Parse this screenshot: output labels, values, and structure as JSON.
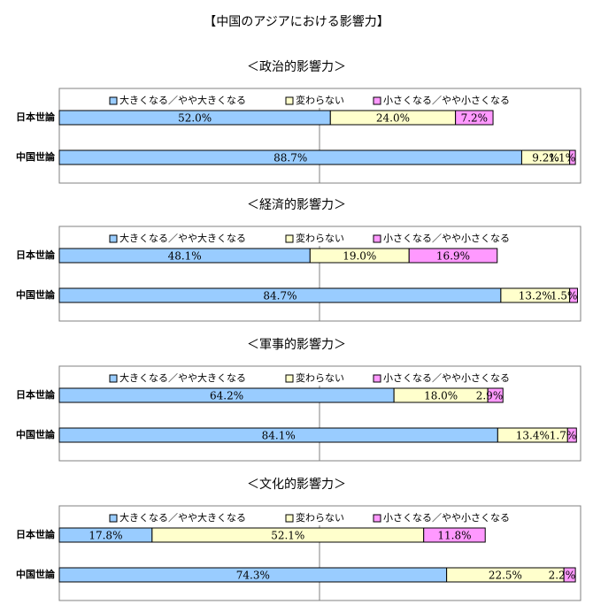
{
  "title": "【中国のアジアにおける影響力】",
  "legend": [
    "大きくなる／やや大きくなる",
    "変わらない",
    "小さくなる／やや小さくなる"
  ],
  "colors": {
    "increase": "#99ccff",
    "unchanged": "#ffffcc",
    "decrease": "#ff99ff",
    "border": "#000000",
    "frame": "#808080"
  },
  "chart_data": [
    {
      "type": "bar",
      "stacked": "100%",
      "orientation": "horizontal",
      "title": "＜政治的影響力＞",
      "categories": [
        "日本世論",
        "中国世論"
      ],
      "series": [
        {
          "name": "大きくなる／やや大きくなる",
          "values": [
            52.0,
            88.7
          ],
          "labels": [
            "52.0%",
            "88.7%"
          ]
        },
        {
          "name": "変わらない",
          "values": [
            24.0,
            9.2
          ],
          "labels": [
            "24.0%",
            "9.2%"
          ]
        },
        {
          "name": "小さくなる／やや小さくなる",
          "values": [
            7.2,
            1.1
          ],
          "labels": [
            "7.2%",
            "1.1%"
          ]
        }
      ],
      "legend_position": "top",
      "grid": false
    },
    {
      "type": "bar",
      "stacked": "100%",
      "orientation": "horizontal",
      "title": "＜経済的影響力＞",
      "categories": [
        "日本世論",
        "中国世論"
      ],
      "series": [
        {
          "name": "大きくなる／やや大きくなる",
          "values": [
            48.1,
            84.7
          ],
          "labels": [
            "48.1%",
            "84.7%"
          ]
        },
        {
          "name": "変わらない",
          "values": [
            19.0,
            13.2
          ],
          "labels": [
            "19.0%",
            "13.2%"
          ]
        },
        {
          "name": "小さくなる／やや小さくなる",
          "values": [
            16.9,
            1.5
          ],
          "labels": [
            "16.9%",
            "1.5%"
          ]
        }
      ],
      "legend_position": "top",
      "grid": false
    },
    {
      "type": "bar",
      "stacked": "100%",
      "orientation": "horizontal",
      "title": "＜軍事的影響力＞",
      "categories": [
        "日本世論",
        "中国世論"
      ],
      "series": [
        {
          "name": "大きくなる／やや大きくなる",
          "values": [
            64.2,
            84.1
          ],
          "labels": [
            "64.2%",
            "84.1%"
          ]
        },
        {
          "name": "変わらない",
          "values": [
            18.0,
            13.4
          ],
          "labels": [
            "18.0%",
            "13.4%"
          ]
        },
        {
          "name": "小さくなる／やや小さくなる",
          "values": [
            2.9,
            1.7
          ],
          "labels": [
            "2.9%",
            "1.7%"
          ]
        }
      ],
      "legend_position": "top",
      "grid": false
    },
    {
      "type": "bar",
      "stacked": "100%",
      "orientation": "horizontal",
      "title": "＜文化的影響力＞",
      "categories": [
        "日本世論",
        "中国世論"
      ],
      "series": [
        {
          "name": "大きくなる／やや大きくなる",
          "values": [
            17.8,
            74.3
          ],
          "labels": [
            "17.8%",
            "74.3%"
          ]
        },
        {
          "name": "変わらない",
          "values": [
            52.1,
            22.5
          ],
          "labels": [
            "52.1%",
            "22.5%"
          ]
        },
        {
          "name": "小さくなる／やや小さくなる",
          "values": [
            11.8,
            2.2
          ],
          "labels": [
            "11.8%",
            "2.2%"
          ]
        }
      ],
      "legend_position": "top",
      "grid": false
    }
  ]
}
